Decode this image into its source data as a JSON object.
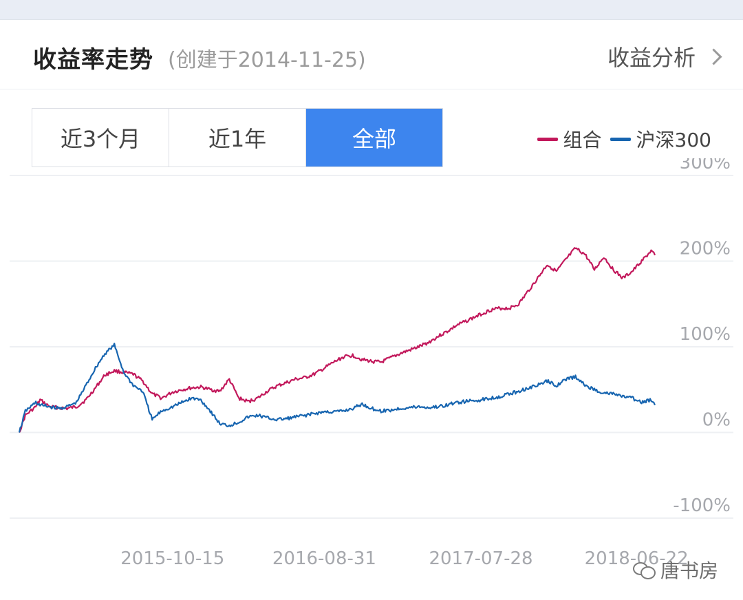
{
  "header": {
    "title": "收益率走势",
    "created": "(创建于2014-11-25)",
    "analysis_label": "收益分析"
  },
  "tabs": [
    {
      "label": "近3个月",
      "active": false
    },
    {
      "label": "近1年",
      "active": false
    },
    {
      "label": "全部",
      "active": true
    }
  ],
  "watermark": "唐书房",
  "chart_data": {
    "type": "line",
    "x_start": "2014-11-25",
    "x_end": "2018-07-31",
    "x_ticks": [
      "2015-10-15",
      "2016-08-31",
      "2017-07-28",
      "2018-06-22"
    ],
    "y_ticks": [
      "300%",
      "200%",
      "100%",
      "0%",
      "-100%"
    ],
    "ylim": [
      -100,
      300
    ],
    "grid": true,
    "legend": "top-right",
    "series": [
      {
        "name": "组合",
        "color": "#c2185b",
        "points": [
          [
            "2014-11-25",
            0
          ],
          [
            "2014-12-08",
            20
          ],
          [
            "2014-12-30",
            30
          ],
          [
            "2015-01-08",
            38
          ],
          [
            "2015-01-28",
            30
          ],
          [
            "2015-02-17",
            29
          ],
          [
            "2015-03-06",
            28
          ],
          [
            "2015-03-26",
            30
          ],
          [
            "2015-04-15",
            38
          ],
          [
            "2015-05-05",
            52
          ],
          [
            "2015-05-25",
            67
          ],
          [
            "2015-06-14",
            72
          ],
          [
            "2015-07-04",
            70
          ],
          [
            "2015-07-24",
            68
          ],
          [
            "2015-08-13",
            60
          ],
          [
            "2015-09-02",
            45
          ],
          [
            "2015-09-22",
            40
          ],
          [
            "2015-10-15",
            47
          ],
          [
            "2015-11-04",
            50
          ],
          [
            "2015-11-24",
            52
          ],
          [
            "2015-12-14",
            53
          ],
          [
            "2016-01-03",
            50
          ],
          [
            "2016-01-23",
            48
          ],
          [
            "2016-02-12",
            62
          ],
          [
            "2016-03-03",
            40
          ],
          [
            "2016-03-23",
            36
          ],
          [
            "2016-04-12",
            40
          ],
          [
            "2016-05-02",
            48
          ],
          [
            "2016-05-22",
            54
          ],
          [
            "2016-06-11",
            58
          ],
          [
            "2016-07-01",
            62
          ],
          [
            "2016-07-21",
            64
          ],
          [
            "2016-08-10",
            68
          ],
          [
            "2016-08-31",
            75
          ],
          [
            "2016-09-20",
            82
          ],
          [
            "2016-10-10",
            88
          ],
          [
            "2016-10-30",
            90
          ],
          [
            "2016-11-19",
            85
          ],
          [
            "2016-12-09",
            83
          ],
          [
            "2016-12-29",
            82
          ],
          [
            "2017-01-18",
            87
          ],
          [
            "2017-02-07",
            92
          ],
          [
            "2017-02-27",
            96
          ],
          [
            "2017-03-19",
            100
          ],
          [
            "2017-04-08",
            105
          ],
          [
            "2017-04-28",
            112
          ],
          [
            "2017-05-18",
            118
          ],
          [
            "2017-06-07",
            125
          ],
          [
            "2017-07-28",
            138
          ],
          [
            "2017-08-17",
            143
          ],
          [
            "2017-09-06",
            145
          ],
          [
            "2017-09-26",
            145
          ],
          [
            "2017-10-16",
            150
          ],
          [
            "2017-11-05",
            165
          ],
          [
            "2017-11-25",
            180
          ],
          [
            "2017-12-15",
            196
          ],
          [
            "2018-01-04",
            188
          ],
          [
            "2018-01-24",
            202
          ],
          [
            "2018-02-13",
            215
          ],
          [
            "2018-03-05",
            208
          ],
          [
            "2018-03-25",
            190
          ],
          [
            "2018-04-14",
            205
          ],
          [
            "2018-05-04",
            190
          ],
          [
            "2018-05-24",
            180
          ],
          [
            "2018-06-13",
            188
          ],
          [
            "2018-07-03",
            200
          ],
          [
            "2018-07-23",
            212
          ],
          [
            "2018-07-31",
            207
          ]
        ]
      },
      {
        "name": "沪深300",
        "color": "#1765b0",
        "points": [
          [
            "2014-11-25",
            0
          ],
          [
            "2014-12-08",
            25
          ],
          [
            "2014-12-30",
            35
          ],
          [
            "2015-01-08",
            32
          ],
          [
            "2015-01-28",
            30
          ],
          [
            "2015-02-17",
            28
          ],
          [
            "2015-03-06",
            30
          ],
          [
            "2015-03-26",
            35
          ],
          [
            "2015-04-15",
            55
          ],
          [
            "2015-05-05",
            75
          ],
          [
            "2015-05-25",
            92
          ],
          [
            "2015-06-14",
            102
          ],
          [
            "2015-07-04",
            70
          ],
          [
            "2015-07-24",
            55
          ],
          [
            "2015-08-13",
            48
          ],
          [
            "2015-09-02",
            15
          ],
          [
            "2015-09-22",
            25
          ],
          [
            "2015-10-15",
            30
          ],
          [
            "2015-11-04",
            35
          ],
          [
            "2015-11-24",
            40
          ],
          [
            "2015-12-14",
            38
          ],
          [
            "2016-01-03",
            25
          ],
          [
            "2016-01-23",
            10
          ],
          [
            "2016-02-12",
            8
          ],
          [
            "2016-03-03",
            12
          ],
          [
            "2016-03-23",
            18
          ],
          [
            "2016-04-12",
            20
          ],
          [
            "2016-05-02",
            17
          ],
          [
            "2016-05-22",
            15
          ],
          [
            "2016-06-11",
            16
          ],
          [
            "2016-07-01",
            18
          ],
          [
            "2016-07-21",
            20
          ],
          [
            "2016-08-10",
            22
          ],
          [
            "2016-08-31",
            24
          ],
          [
            "2016-09-20",
            24
          ],
          [
            "2016-10-10",
            25
          ],
          [
            "2016-10-30",
            28
          ],
          [
            "2016-11-19",
            33
          ],
          [
            "2016-12-09",
            28
          ],
          [
            "2016-12-29",
            25
          ],
          [
            "2017-01-18",
            26
          ],
          [
            "2017-02-07",
            28
          ],
          [
            "2017-02-27",
            29
          ],
          [
            "2017-03-19",
            30
          ],
          [
            "2017-04-08",
            29
          ],
          [
            "2017-04-28",
            30
          ],
          [
            "2017-05-18",
            32
          ],
          [
            "2017-06-07",
            35
          ],
          [
            "2017-07-28",
            38
          ],
          [
            "2017-08-17",
            40
          ],
          [
            "2017-09-06",
            42
          ],
          [
            "2017-09-26",
            45
          ],
          [
            "2017-10-16",
            48
          ],
          [
            "2017-11-05",
            52
          ],
          [
            "2017-11-25",
            55
          ],
          [
            "2017-12-15",
            60
          ],
          [
            "2018-01-04",
            55
          ],
          [
            "2018-01-24",
            62
          ],
          [
            "2018-02-13",
            65
          ],
          [
            "2018-03-05",
            55
          ],
          [
            "2018-03-25",
            50
          ],
          [
            "2018-04-14",
            46
          ],
          [
            "2018-05-04",
            45
          ],
          [
            "2018-05-24",
            42
          ],
          [
            "2018-06-13",
            40
          ],
          [
            "2018-07-03",
            35
          ],
          [
            "2018-07-23",
            38
          ],
          [
            "2018-07-31",
            32
          ]
        ]
      }
    ]
  }
}
